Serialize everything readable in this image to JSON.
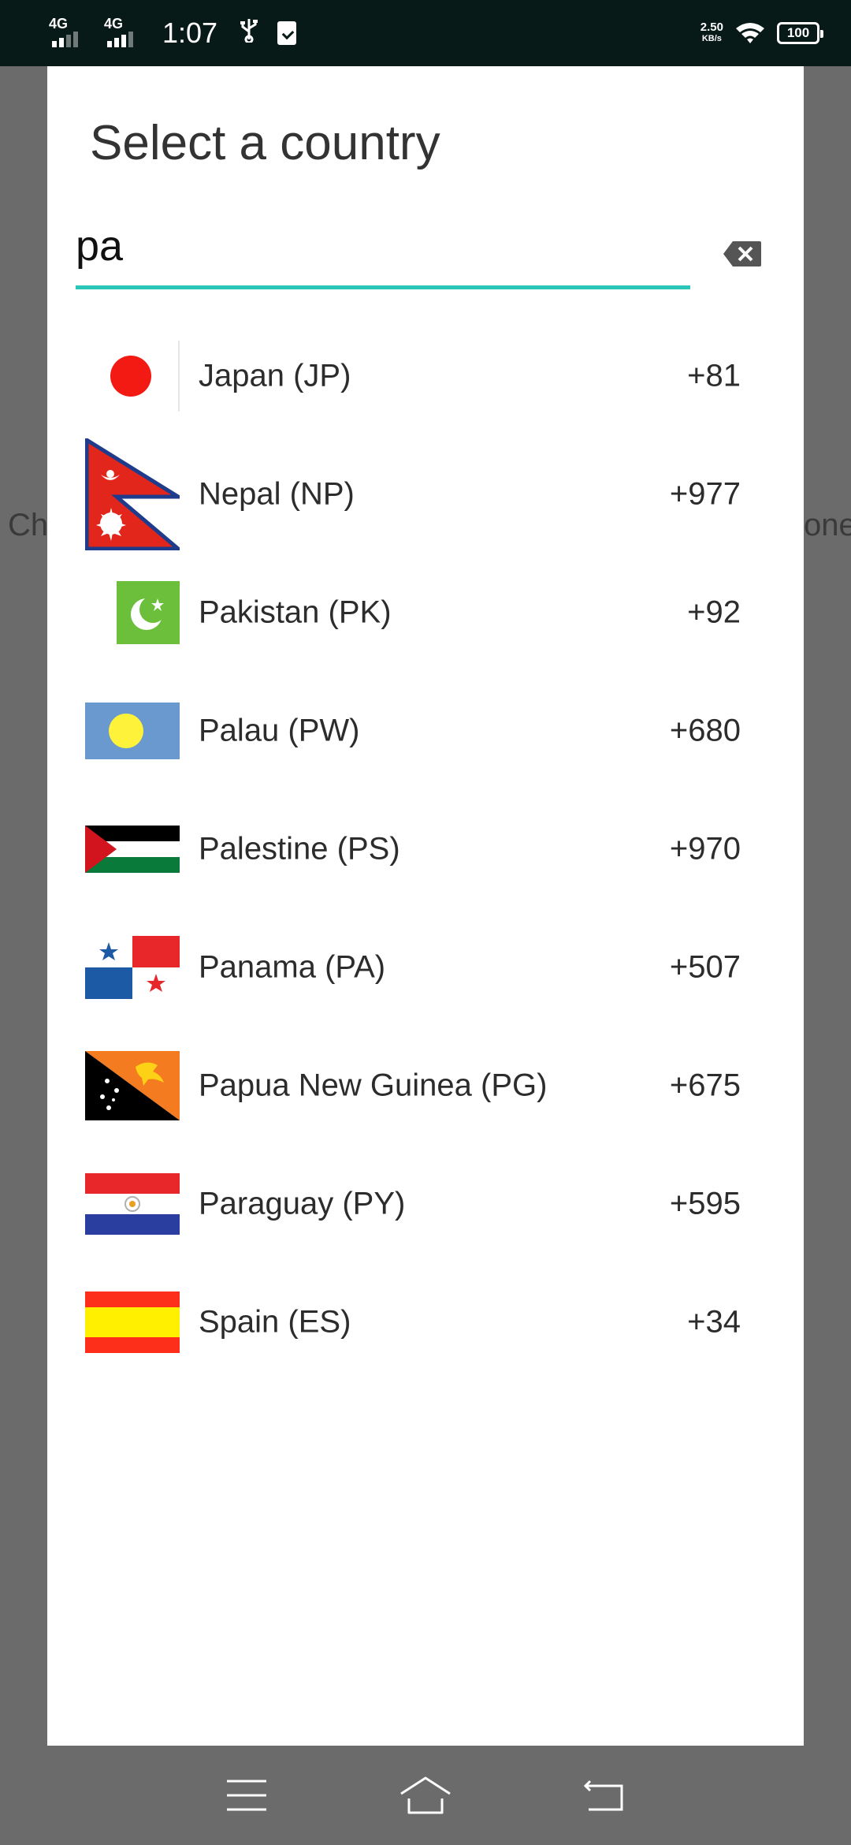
{
  "status_bar": {
    "network1": "4G",
    "network2": "4G",
    "time": "1:07",
    "speed_value": "2.50",
    "speed_unit": "KB/s",
    "battery": "100",
    "icons": [
      "signal-icon",
      "usb-icon",
      "clipboard-check-icon",
      "wifi-icon",
      "battery-icon"
    ]
  },
  "background": {
    "left_fragment": "Ch",
    "right_fragment": "one"
  },
  "dialog": {
    "title": "Select a country",
    "search_value": "pa",
    "accent_color": "#2ac6b8"
  },
  "countries": [
    {
      "name": "Japan (JP)",
      "code": "+81",
      "flag": "japan-flag-icon"
    },
    {
      "name": "Nepal (NP)",
      "code": "+977",
      "flag": "nepal-flag-icon"
    },
    {
      "name": "Pakistan (PK)",
      "code": "+92",
      "flag": "pakistan-flag-icon"
    },
    {
      "name": "Palau (PW)",
      "code": "+680",
      "flag": "palau-flag-icon"
    },
    {
      "name": "Palestine (PS)",
      "code": "+970",
      "flag": "palestine-flag-icon"
    },
    {
      "name": "Panama (PA)",
      "code": "+507",
      "flag": "panama-flag-icon"
    },
    {
      "name": "Papua New Guinea (PG)",
      "code": "+675",
      "flag": "papua-new-guinea-flag-icon"
    },
    {
      "name": "Paraguay (PY)",
      "code": "+595",
      "flag": "paraguay-flag-icon"
    },
    {
      "name": "Spain (ES)",
      "code": "+34",
      "flag": "spain-flag-icon"
    }
  ],
  "nav": {
    "icons": [
      "menu-icon",
      "home-icon",
      "back-icon"
    ]
  }
}
